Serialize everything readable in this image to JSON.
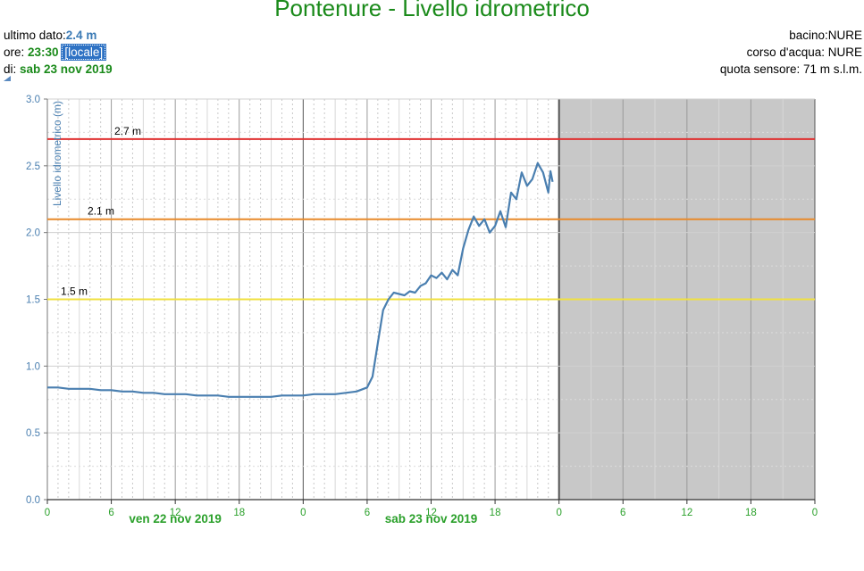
{
  "title": "Pontenure - Livello idrometrico",
  "info": {
    "ultimo_dato_label": "ultimo dato:",
    "ultimo_dato_value": "2.4 m",
    "ore_label": "ore:",
    "ore_value": "23:30",
    "ore_badge": "[locale]",
    "di_label": "di:",
    "di_value": "sab 23 nov 2019",
    "bacino": "bacino:NURE",
    "corso": "corso d'acqua: NURE",
    "quota": "quota sensore: 71 m s.l.m."
  },
  "colors": {
    "title": "#1a8a1a",
    "series": "#4a7fb0",
    "threshold_high": "#e03030",
    "threshold_mid": "#e88a2a",
    "threshold_low": "#f0e040",
    "future_shade": "#c8c8c8"
  },
  "chart_data": {
    "type": "line",
    "title": "Pontenure - Livello idrometrico",
    "ylabel": "Livello idrometrico (m)",
    "xlabel": "",
    "ylim": [
      0,
      3.0
    ],
    "yticks": [
      "0.0",
      "0.5",
      "1.0",
      "1.5",
      "2.0",
      "2.5",
      "3.0"
    ],
    "xlim_hours": [
      0,
      72
    ],
    "xticks": [
      "0",
      "6",
      "12",
      "18",
      "0",
      "6",
      "12",
      "18",
      "0",
      "6",
      "12",
      "18",
      "0"
    ],
    "day_labels": [
      {
        "text": "ven 22 nov 2019",
        "hour": 12
      },
      {
        "text": "sab 23 nov 2019",
        "hour": 36
      }
    ],
    "future_from_hour": 48,
    "grid": true,
    "thresholds": [
      {
        "value": 2.7,
        "label": "2.7 m",
        "color": "#e03030"
      },
      {
        "value": 2.1,
        "label": "2.1 m",
        "color": "#e88a2a"
      },
      {
        "value": 1.5,
        "label": "1.5 m",
        "color": "#f0e040"
      }
    ],
    "series": [
      {
        "x": [
          0,
          1,
          2,
          3,
          4,
          5,
          6,
          7,
          8,
          9,
          10,
          11,
          12,
          13,
          14,
          15,
          16,
          17,
          18,
          19,
          20,
          21,
          22,
          23,
          24,
          25,
          26,
          27,
          28,
          29,
          30,
          30.5,
          31,
          31.5,
          32,
          32.5,
          33,
          33.5,
          34,
          34.5,
          35,
          35.5,
          36,
          36.5,
          37,
          37.5,
          38,
          38.5,
          39,
          39.5,
          40,
          40.5,
          41,
          41.5,
          42,
          42.5,
          43,
          43.5,
          44,
          44.5,
          45,
          45.5,
          46,
          46.5,
          47,
          47.2,
          47.4
        ],
        "y": [
          0.84,
          0.84,
          0.83,
          0.83,
          0.83,
          0.82,
          0.82,
          0.81,
          0.81,
          0.8,
          0.8,
          0.79,
          0.79,
          0.79,
          0.78,
          0.78,
          0.78,
          0.77,
          0.77,
          0.77,
          0.77,
          0.77,
          0.78,
          0.78,
          0.78,
          0.79,
          0.79,
          0.79,
          0.8,
          0.81,
          0.84,
          0.92,
          1.17,
          1.42,
          1.5,
          1.55,
          1.54,
          1.53,
          1.56,
          1.55,
          1.6,
          1.62,
          1.68,
          1.66,
          1.7,
          1.65,
          1.72,
          1.68,
          1.88,
          2.02,
          2.12,
          2.05,
          2.1,
          2.0,
          2.05,
          2.16,
          2.04,
          2.3,
          2.25,
          2.45,
          2.35,
          2.4,
          2.52,
          2.45,
          2.3,
          2.46,
          2.38
        ]
      }
    ]
  }
}
